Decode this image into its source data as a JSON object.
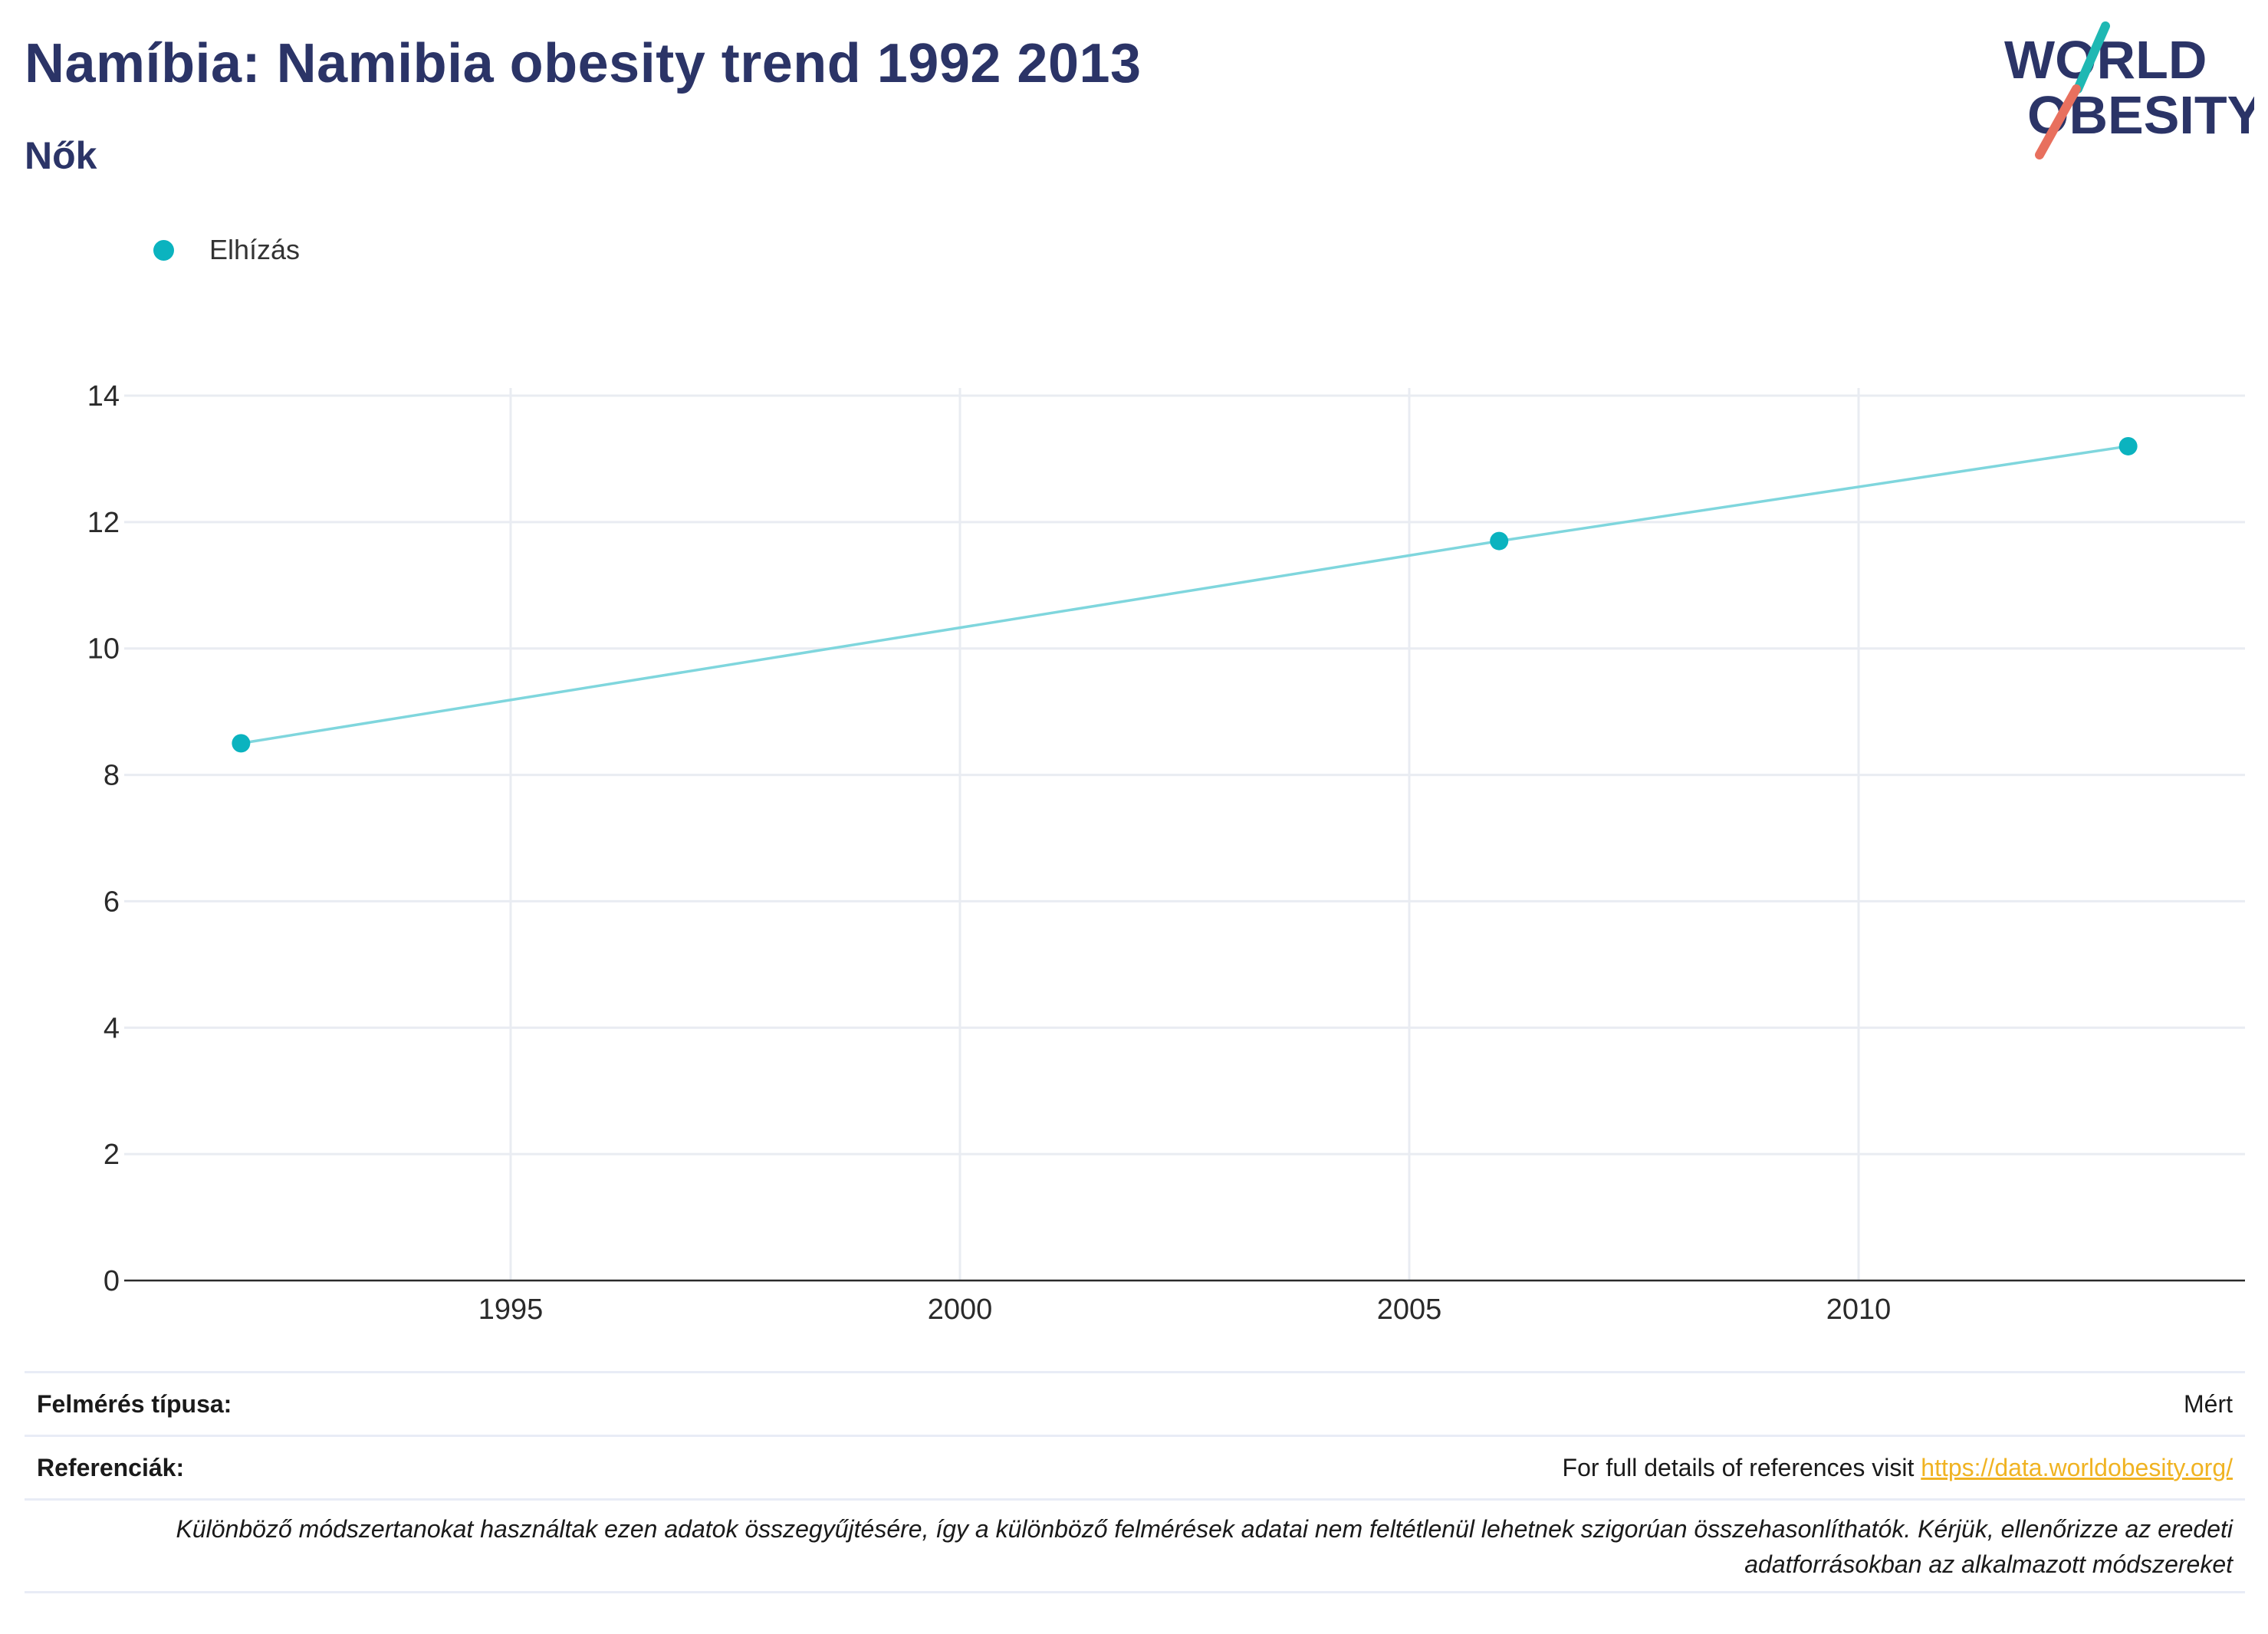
{
  "header": {
    "title": "Namíbia: Namibia obesity trend 1992 2013",
    "subtitle": "Nők"
  },
  "logo": {
    "line1": "WORLD",
    "line2": "OBESITY"
  },
  "legend": {
    "label": "Elhízás",
    "color": "#0bb3bf"
  },
  "chart_data": {
    "type": "line",
    "x": [
      1992,
      2006,
      2013
    ],
    "series": [
      {
        "name": "Elhízás",
        "values": [
          8.5,
          11.7,
          13.2
        ]
      }
    ],
    "xticks": [
      1995,
      2000,
      2005,
      2010
    ],
    "yticks": [
      0,
      2,
      4,
      6,
      8,
      10,
      12,
      14
    ],
    "xlim": [
      1990.7,
      2014.3
    ],
    "ylim": [
      0,
      14
    ],
    "grid": true,
    "legend_position": "top-left",
    "colors": {
      "marker": "#0bb3bf",
      "line": "#7fd6dd"
    }
  },
  "footer": {
    "survey_label": "Felmérés típusa:",
    "survey_value": "Mért",
    "refs_label": "Referenciák:",
    "refs_text": "For full details of references visit ",
    "refs_link": "https://data.worldobesity.org/",
    "note": "Különböző módszertanokat használtak ezen adatok összegyűjtésére, így a különböző felmérések adatai nem feltétlenül lehetnek szigorúan összehasonlíthatók. Kérjük, ellenőrizze az eredeti adatforrásokban az alkalmazott módszereket"
  }
}
